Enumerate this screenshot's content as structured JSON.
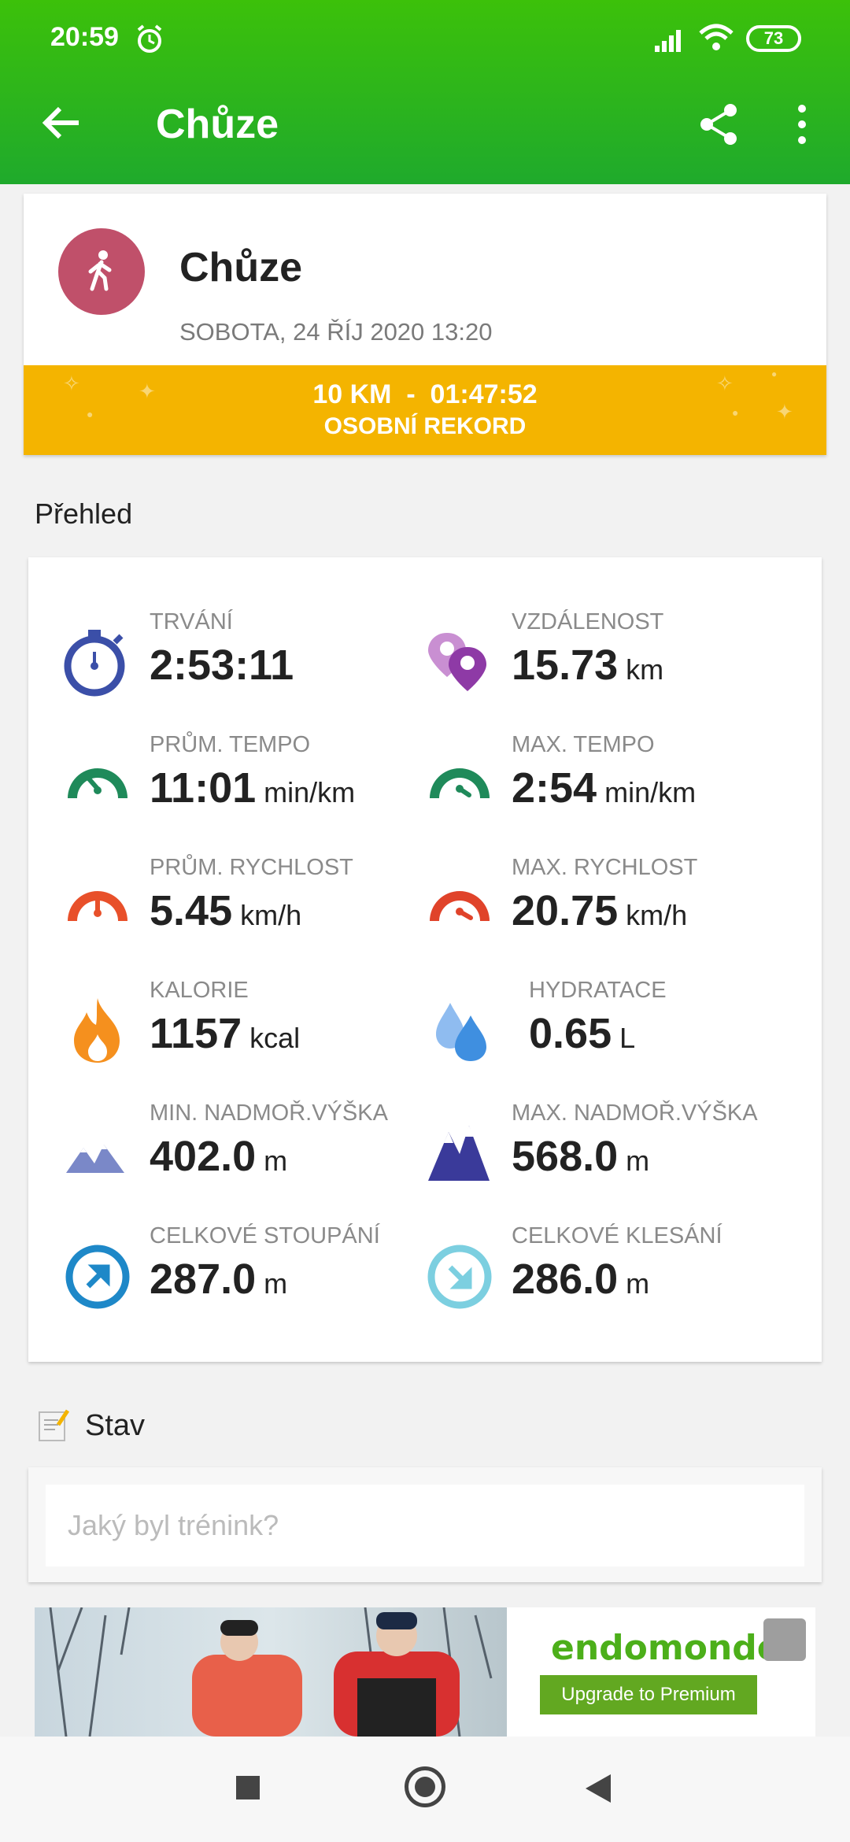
{
  "status_bar": {
    "time": "20:59",
    "battery": "73"
  },
  "app_bar": {
    "title": "Chůze"
  },
  "activity": {
    "title": "Chůze",
    "datetime": "SOBOTA, 24 ŘÍJ 2020 13:20",
    "record_line1": "10 KM  -  01:47:52",
    "record_line2": "OSOBNÍ REKORD"
  },
  "overview": {
    "section_title": "Přehled",
    "stats": [
      {
        "label": "TRVÁNÍ",
        "value": "2:53:11",
        "unit": "",
        "icon": "stopwatch-icon",
        "color": "#3b4fa8"
      },
      {
        "label": "VZDÁLENOST",
        "value": "15.73",
        "unit": "km",
        "icon": "map-pin-icon",
        "color": "#8e3aa6"
      },
      {
        "label": "PRŮM. TEMPO",
        "value": "11:01",
        "unit": "min/km",
        "icon": "gauge-icon",
        "color": "#1f8a5a"
      },
      {
        "label": "MAX. TEMPO",
        "value": "2:54",
        "unit": "min/km",
        "icon": "gauge-icon",
        "color": "#1f8a5a"
      },
      {
        "label": "PRŮM. RYCHLOST",
        "value": "5.45",
        "unit": "km/h",
        "icon": "speedometer-icon",
        "color": "#e8502a"
      },
      {
        "label": "MAX. RYCHLOST",
        "value": "20.75",
        "unit": "km/h",
        "icon": "speedometer-icon",
        "color": "#e0432a"
      },
      {
        "label": "KALORIE",
        "value": "1157",
        "unit": "kcal",
        "icon": "flame-icon",
        "color": "#f5901e"
      },
      {
        "label": "HYDRATACE",
        "value": "0.65",
        "unit": "L",
        "icon": "water-drops-icon",
        "color": "#3f8fe0"
      },
      {
        "label": "MIN. NADMOŘ.VÝŠKA",
        "value": "402.0",
        "unit": "m",
        "icon": "mountain-icon",
        "color": "#7a88c8"
      },
      {
        "label": "MAX. NADMOŘ.VÝŠKA",
        "value": "568.0",
        "unit": "m",
        "icon": "mountain-icon",
        "color": "#3a3a9a"
      },
      {
        "label": "CELKOVÉ STOUPÁNÍ",
        "value": "287.0",
        "unit": "m",
        "icon": "ascent-arrow-icon",
        "color": "#1e88c8"
      },
      {
        "label": "CELKOVÉ KLESÁNÍ",
        "value": "286.0",
        "unit": "m",
        "icon": "descent-arrow-icon",
        "color": "#7ccfe0"
      }
    ]
  },
  "stav": {
    "title": "Stav",
    "placeholder": "Jaký byl trénink?"
  },
  "ad": {
    "brand": "endomondo",
    "button": "Upgrade to Premium"
  }
}
